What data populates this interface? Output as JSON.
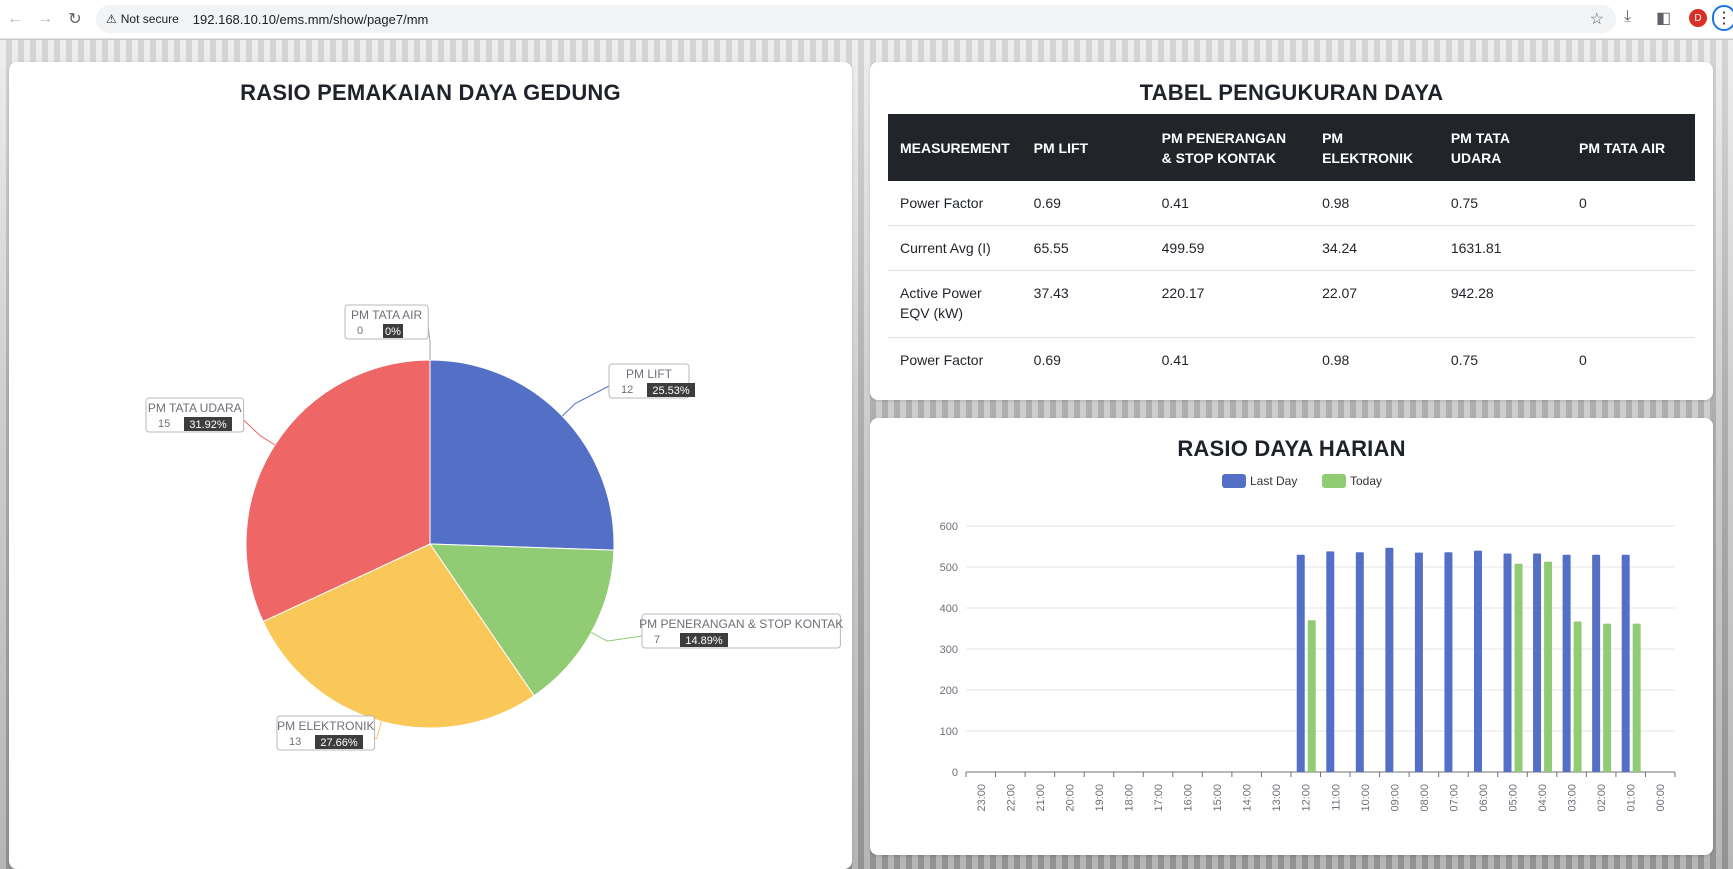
{
  "browser": {
    "security_label": "Not secure",
    "url": "192.168.10.10/ems.mm/show/page7/mm",
    "profile_initial": "D"
  },
  "pie": {
    "title": "RASIO PEMAKAIAN DAYA GEDUNG"
  },
  "table": {
    "title": "TABEL PENGUKURAN DAYA",
    "headers": [
      "MEASUREMENT",
      "PM LIFT",
      "PM PENERANGAN & STOP KONTAK",
      "PM ELEKTRONIK",
      "PM TATA UDARA",
      "PM TATA AIR"
    ],
    "rows": [
      [
        "Power Factor",
        "0.69",
        "0.41",
        "0.98",
        "0.75",
        "0"
      ],
      [
        "Current Avg (I)",
        "65.55",
        "499.59",
        "34.24",
        "1631.81",
        ""
      ],
      [
        "Active Power EQV (kW)",
        "37.43",
        "220.17",
        "22.07",
        "942.28",
        ""
      ],
      [
        "Power Factor",
        "0.69",
        "0.41",
        "0.98",
        "0.75",
        "0"
      ]
    ]
  },
  "bar": {
    "title": "RASIO DAYA HARIAN"
  },
  "colors": {
    "blue": "#5470c6",
    "green": "#91cc75",
    "yellow": "#fac858",
    "red": "#ee6666",
    "dark": "#212529"
  },
  "chart_data": [
    {
      "type": "pie",
      "title": "RASIO PEMAKAIAN DAYA GEDUNG",
      "slices": [
        {
          "label": "PM LIFT",
          "value": 12,
          "percent": "25.53%",
          "color": "#5470c6"
        },
        {
          "label": "PM PENERANGAN & STOP KONTAK",
          "value": 7,
          "percent": "14.89%",
          "color": "#91cc75"
        },
        {
          "label": "PM ELEKTRONIK",
          "value": 13,
          "percent": "27.66%",
          "color": "#fac858"
        },
        {
          "label": "PM TATA UDARA",
          "value": 15,
          "percent": "31.92%",
          "color": "#ee6666"
        },
        {
          "label": "PM TATA AIR",
          "value": 0,
          "percent": "0%",
          "color": "#73c0de"
        }
      ]
    },
    {
      "type": "bar",
      "title": "RASIO DAYA HARIAN",
      "categories": [
        "23:00",
        "22:00",
        "21:00",
        "20:00",
        "19:00",
        "18:00",
        "17:00",
        "16:00",
        "15:00",
        "14:00",
        "13:00",
        "12:00",
        "11:00",
        "10:00",
        "09:00",
        "08:00",
        "07:00",
        "06:00",
        "05:00",
        "04:00",
        "03:00",
        "02:00",
        "01:00",
        "00:00"
      ],
      "series": [
        {
          "name": "Last Day",
          "color": "#5470c6",
          "values": [
            0,
            0,
            0,
            0,
            0,
            0,
            0,
            0,
            0,
            0,
            0,
            530,
            538,
            536,
            547,
            535,
            536,
            540,
            533,
            533,
            530,
            530,
            530,
            0
          ]
        },
        {
          "name": "Today",
          "color": "#91cc75",
          "values": [
            0,
            0,
            0,
            0,
            0,
            0,
            0,
            0,
            0,
            0,
            0,
            370,
            0,
            0,
            0,
            0,
            0,
            0,
            508,
            513,
            367,
            362,
            362,
            0
          ]
        }
      ],
      "ylim": [
        0,
        600
      ],
      "yticks": [
        0,
        100,
        200,
        300,
        400,
        500,
        600
      ],
      "legend": "top-center",
      "grid": true
    }
  ]
}
